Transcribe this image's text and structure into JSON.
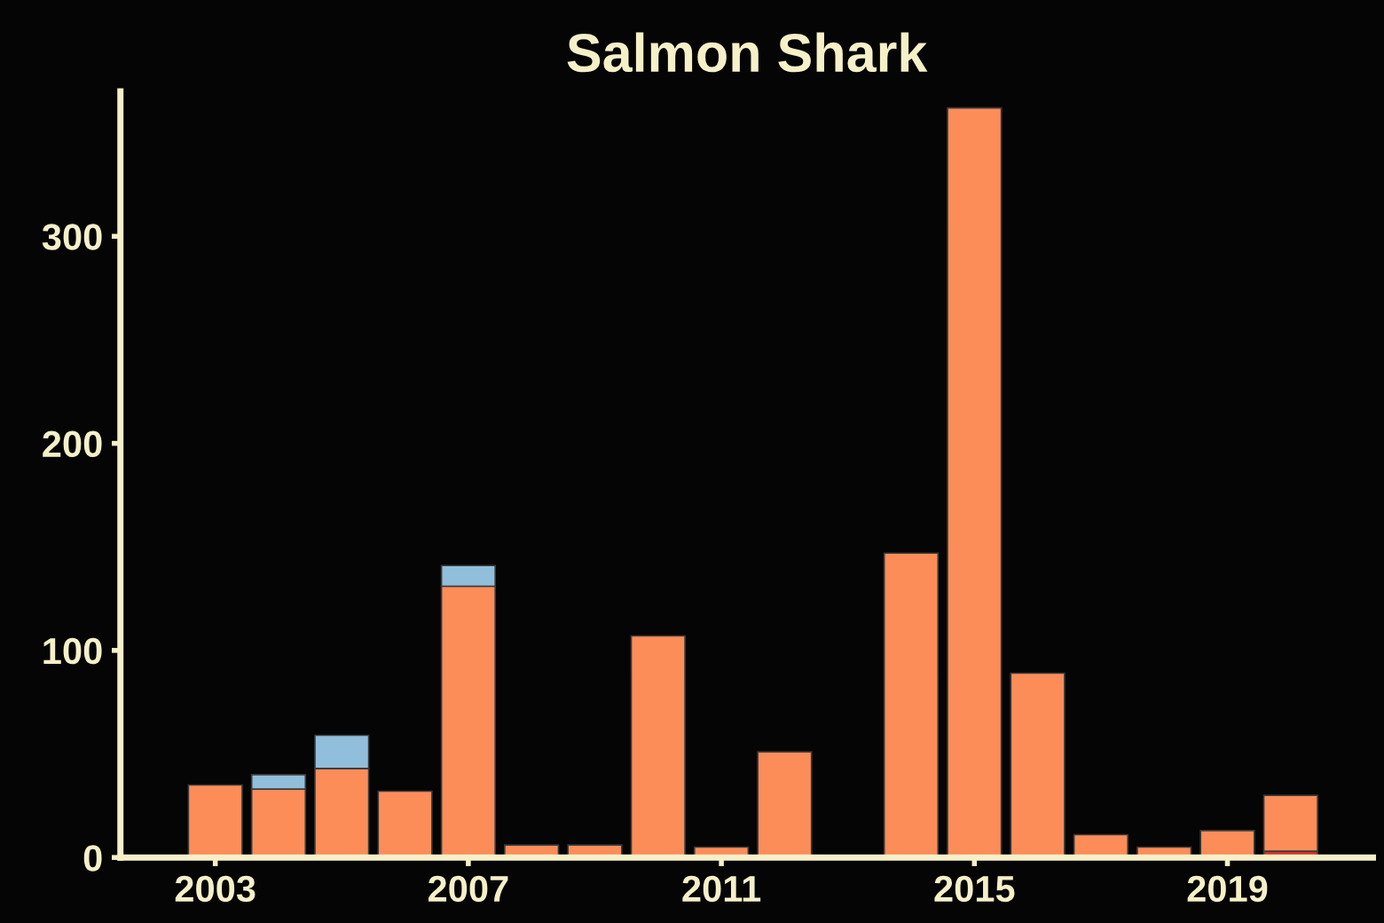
{
  "chart_data": {
    "type": "bar",
    "title": "Salmon Shark",
    "stacked": true,
    "x": [
      2003,
      2004,
      2005,
      2006,
      2007,
      2008,
      2009,
      2010,
      2011,
      2012,
      2013,
      2014,
      2015,
      2016,
      2017,
      2018,
      2019,
      2020
    ],
    "series": [
      {
        "color": "#d73027",
        "values": [
          null,
          null,
          null,
          null,
          null,
          null,
          null,
          null,
          null,
          null,
          null,
          null,
          null,
          null,
          null,
          null,
          null,
          3
        ]
      },
      {
        "color": "#fc8d59",
        "values": [
          35,
          33,
          43,
          32,
          131,
          6,
          6,
          107,
          5,
          51,
          1,
          147,
          362,
          89,
          11,
          5,
          13,
          27
        ]
      },
      {
        "color": "#91bfdb",
        "values": [
          null,
          7,
          16,
          null,
          10,
          null,
          null,
          null,
          null,
          null,
          null,
          null,
          null,
          null,
          null,
          null,
          null,
          null
        ]
      }
    ],
    "xlim": [
      2001.5,
      2021.3
    ],
    "xticks": [
      2003,
      2007,
      2011,
      2015,
      2019
    ],
    "ylim": [
      0,
      370
    ],
    "yticks": [
      0,
      100,
      200,
      300
    ],
    "grid": false
  }
}
